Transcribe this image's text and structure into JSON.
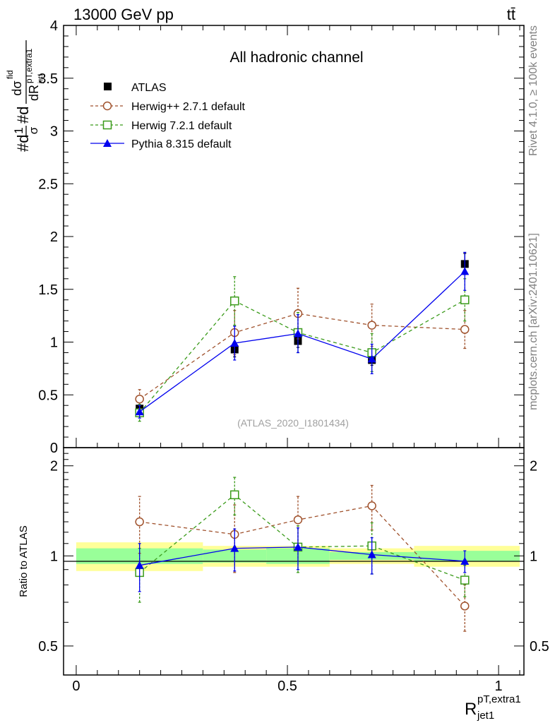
{
  "header": {
    "left_title": "13000 GeV pp",
    "right_title": "tt̄"
  },
  "main_panel": {
    "channel_label": "All hadronic channel",
    "analysis_id": "(ATLAS_2020_I1801434)",
    "y_ticks": [
      "0",
      "0.5",
      "1",
      "1.5",
      "2",
      "2.5",
      "3",
      "3.5",
      "4"
    ]
  },
  "ratio_panel": {
    "ylabel": "Ratio to ATLAS",
    "y_ticks": [
      "0.5",
      "1",
      "2"
    ],
    "x_ticks": [
      "0",
      "0.5",
      "1"
    ]
  },
  "side_labels": {
    "rivet": "Rivet 4.1.0, ≥ 100k events",
    "mcplots": "mcplots.cern.ch [arXiv:2401.10621]"
  },
  "ylabel": {
    "p1": "#d",
    "p2": "#d",
    "frac1_num": "1",
    "frac1_den": "σ",
    "frac2_num": "dσ",
    "frac2_sup": "fid",
    "frac2_den": "dR",
    "frac2_den_sup": "pT,extra1",
    "frac2_den_sub": "jet1"
  },
  "xlabel": {
    "base": "R",
    "sup": "pT,extra1",
    "sub": "jet1"
  },
  "colors": {
    "atlas": "#000000",
    "herwigpp": "#a0522d",
    "herwig7": "#3b9b1b",
    "pythia": "#0000ee",
    "band_inner": "#99ff99",
    "band_outer": "#ffff99"
  },
  "chart_data": {
    "type": "scatter",
    "xlabel": "R_jet1^pT,extra1",
    "ylabel": "#d 1/σ #d dσ^fid / dR_jet1^pT,extra1",
    "xlim": [
      -0.03,
      1.06
    ],
    "ylim": [
      0,
      4
    ],
    "ratio_ylim_log": [
      0.4,
      2.3
    ],
    "bins": [
      [
        0.0,
        0.3
      ],
      [
        0.3,
        0.45
      ],
      [
        0.45,
        0.6
      ],
      [
        0.6,
        0.8
      ],
      [
        0.8,
        1.05
      ]
    ],
    "legend_position": "top-left",
    "series": [
      {
        "name": "ATLAS",
        "style": "data",
        "x": [
          0.15,
          0.375,
          0.525,
          0.7,
          0.92
        ],
        "y": [
          0.37,
          0.93,
          1.01,
          0.83,
          1.74
        ],
        "yerr": [
          0.03,
          0.07,
          0.06,
          0.05,
          0.1
        ],
        "band_inner": [
          0.06,
          0.05,
          0.06,
          0.03,
          0.04
        ],
        "band_outer": [
          0.11,
          0.08,
          0.08,
          0.06,
          0.08
        ]
      },
      {
        "name": "Herwig++ 2.7.1 default",
        "style": "herwigpp",
        "x": [
          0.15,
          0.375,
          0.525,
          0.7,
          0.92
        ],
        "y": [
          0.46,
          1.09,
          1.27,
          1.16,
          1.12
        ],
        "yerr": [
          0.09,
          0.21,
          0.24,
          0.2,
          0.18
        ],
        "ratio": [
          1.3,
          1.18,
          1.32,
          1.47,
          0.68
        ],
        "ratio_err": [
          0.28,
          0.3,
          0.26,
          0.25,
          0.12
        ]
      },
      {
        "name": "Herwig 7.2.1 default",
        "style": "herwig7",
        "x": [
          0.15,
          0.375,
          0.525,
          0.7,
          0.92
        ],
        "y": [
          0.33,
          1.39,
          1.09,
          0.9,
          1.4
        ],
        "yerr": [
          0.08,
          0.23,
          0.19,
          0.18,
          0.2
        ],
        "ratio": [
          0.88,
          1.6,
          1.07,
          1.08,
          0.83
        ],
        "ratio_err": [
          0.18,
          0.23,
          0.19,
          0.21,
          0.1
        ]
      },
      {
        "name": "Pythia 8.315 default",
        "style": "pythia",
        "x": [
          0.15,
          0.375,
          0.525,
          0.7,
          0.92
        ],
        "y": [
          0.34,
          0.99,
          1.08,
          0.84,
          1.67
        ],
        "yerr": [
          0.06,
          0.16,
          0.18,
          0.14,
          0.18
        ],
        "ratio": [
          0.93,
          1.06,
          1.07,
          1.01,
          0.96
        ],
        "ratio_err": [
          0.17,
          0.17,
          0.17,
          0.14,
          0.08
        ]
      }
    ]
  }
}
